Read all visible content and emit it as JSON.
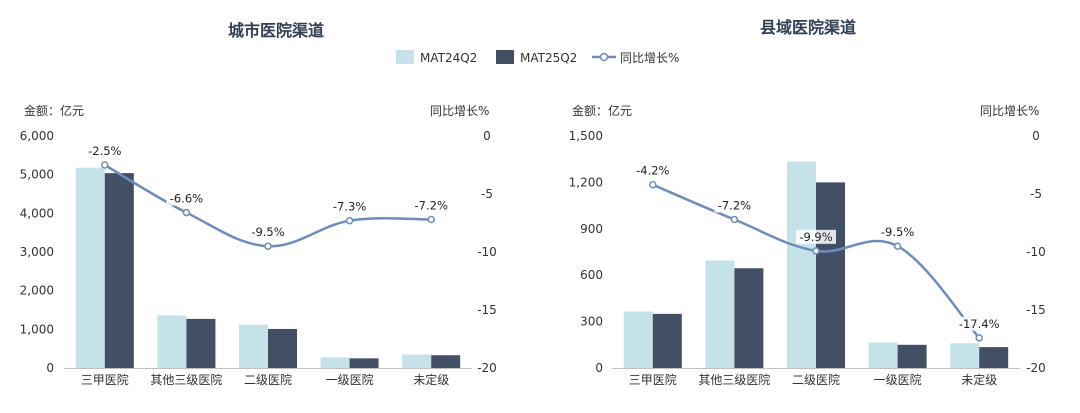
{
  "legend": {
    "items": [
      {
        "label": "MAT24Q2",
        "color": "#c5e2e8",
        "kind": "bar"
      },
      {
        "label": "MAT25Q2",
        "color": "#434f64",
        "kind": "bar"
      },
      {
        "label": "同比增长%",
        "color": "#6c8cbc",
        "kind": "line"
      }
    ]
  },
  "chart_data": [
    {
      "type": "bar",
      "title": "城市医院渠道",
      "ylabel": "金额：亿元",
      "y2label": "同比增长%",
      "categories": [
        "三甲医院",
        "其他三级医院",
        "二级医院",
        "一级医院",
        "未定级"
      ],
      "ylim": [
        0,
        6000
      ],
      "yticks": [
        0,
        1000,
        2000,
        3000,
        4000,
        5000,
        6000
      ],
      "yticklabels": [
        "0",
        "1,000",
        "2,000",
        "3,000",
        "4,000",
        "5,000",
        "6,000"
      ],
      "y2lim": [
        -20,
        0
      ],
      "y2ticks": [
        0,
        -5,
        -10,
        -15,
        -20
      ],
      "series": [
        {
          "name": "MAT24Q2",
          "type": "bar",
          "values": [
            5180,
            1360,
            1120,
            270,
            350
          ]
        },
        {
          "name": "MAT25Q2",
          "type": "bar",
          "values": [
            5040,
            1270,
            1010,
            250,
            330
          ]
        },
        {
          "name": "同比增长%",
          "type": "line",
          "axis": "right",
          "values": [
            -2.5,
            -6.6,
            -9.5,
            -7.3,
            -7.2
          ],
          "labels": [
            "-2.5%",
            "-6.6%",
            "-9.5%",
            "-7.3%",
            "-7.2%"
          ]
        }
      ]
    },
    {
      "type": "bar",
      "title": "县域医院渠道",
      "ylabel": "金额：亿元",
      "y2label": "同比增长%",
      "categories": [
        "三甲医院",
        "其他三级医院",
        "二级医院",
        "一级医院",
        "未定级"
      ],
      "ylim": [
        0,
        1500
      ],
      "yticks": [
        0,
        300,
        600,
        900,
        1200,
        1500
      ],
      "yticklabels": [
        "0",
        "300",
        "600",
        "900",
        "1,200",
        "1,500"
      ],
      "y2lim": [
        -20,
        0
      ],
      "y2ticks": [
        0,
        -5,
        -10,
        -15,
        -20
      ],
      "series": [
        {
          "name": "MAT24Q2",
          "type": "bar",
          "values": [
            365,
            695,
            1335,
            165,
            160
          ]
        },
        {
          "name": "MAT25Q2",
          "type": "bar",
          "values": [
            350,
            645,
            1200,
            150,
            135
          ]
        },
        {
          "name": "同比增长%",
          "type": "line",
          "axis": "right",
          "values": [
            -4.2,
            -7.2,
            -9.9,
            -9.5,
            -17.4
          ],
          "labels": [
            "-4.2%",
            "-7.2%",
            "-9.9%",
            "-9.5%",
            "-17.4%"
          ]
        }
      ]
    }
  ]
}
